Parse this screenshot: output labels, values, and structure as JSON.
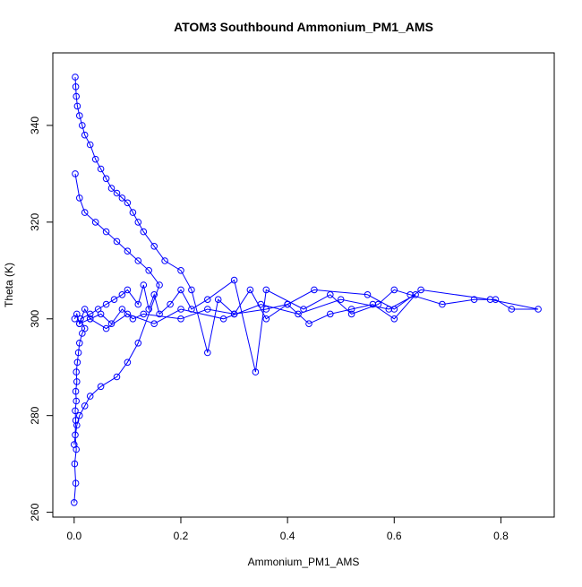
{
  "chart_data": {
    "type": "scatter",
    "style": "points-and-lines",
    "title": "ATOM3 Southbound Ammonium_PM1_AMS",
    "xlabel": "Ammonium_PM1_AMS",
    "ylabel": "Theta (K)",
    "xlim": [
      -0.04,
      0.9
    ],
    "ylim": [
      259,
      355
    ],
    "xticks": [
      0.0,
      0.2,
      0.4,
      0.6,
      0.8
    ],
    "xtick_labels": [
      "0.0",
      "0.2",
      "0.4",
      "0.6",
      "0.8"
    ],
    "yticks": [
      260,
      280,
      300,
      320,
      340
    ],
    "ytick_labels": [
      "260",
      "280",
      "300",
      "320",
      "340"
    ],
    "grid": false,
    "legend": "none",
    "color": "#0000ff",
    "series": [
      {
        "x": [
          0.0,
          0.003,
          0.001,
          0.004,
          0.002,
          0.003,
          0.002,
          0.004,
          0.003,
          0.005,
          0.004,
          0.006,
          0.008,
          0.01,
          0.015,
          0.02,
          0.012,
          0.03,
          0.045,
          0.06,
          0.075,
          0.09,
          0.1,
          0.12,
          0.13,
          0.14,
          0.15,
          0.16,
          0.18,
          0.2,
          0.22,
          0.25,
          0.3,
          0.34,
          0.36,
          0.43,
          0.48,
          0.52,
          0.57,
          0.6,
          0.63,
          0.69,
          0.75,
          0.79,
          0.82,
          0.87,
          0.78,
          0.65,
          0.6,
          0.55,
          0.45,
          0.4,
          0.36,
          0.3,
          0.27,
          0.25,
          0.22,
          0.2,
          0.17,
          0.15,
          0.13,
          0.12,
          0.11,
          0.1,
          0.09,
          0.08,
          0.07,
          0.06,
          0.05,
          0.04,
          0.03,
          0.02,
          0.015,
          0.01,
          0.006,
          0.004,
          0.003,
          0.002
        ],
        "y": [
          262,
          266,
          270,
          273,
          276,
          279,
          281,
          283,
          285,
          287,
          289,
          291,
          293,
          295,
          297,
          298,
          300,
          301,
          302,
          303,
          304,
          305,
          306,
          303,
          307,
          302,
          305,
          301,
          303,
          306,
          302,
          304,
          308,
          289,
          306,
          302,
          305,
          301,
          303,
          306,
          305,
          303,
          304,
          304,
          302,
          302,
          304,
          306,
          302,
          305,
          306,
          303,
          302,
          301,
          304,
          293,
          306,
          310,
          312,
          315,
          318,
          320,
          322,
          324,
          325,
          326,
          327,
          329,
          331,
          333,
          336,
          338,
          340,
          342,
          344,
          346,
          348,
          350
        ]
      },
      {
        "x": [
          0.002,
          0.01,
          0.02,
          0.04,
          0.06,
          0.08,
          0.1,
          0.12,
          0.14,
          0.16,
          0.12,
          0.1,
          0.08,
          0.05,
          0.03,
          0.02,
          0.01,
          0.005,
          0.0
        ],
        "y": [
          330,
          325,
          322,
          320,
          318,
          316,
          314,
          312,
          310,
          307,
          295,
          291,
          288,
          286,
          284,
          282,
          280,
          278,
          274
        ]
      },
      {
        "x": [
          0.001,
          0.005,
          0.01,
          0.02,
          0.03,
          0.05,
          0.07,
          0.09,
          0.11,
          0.13,
          0.2,
          0.25,
          0.3,
          0.33,
          0.36,
          0.4,
          0.44,
          0.48,
          0.52,
          0.56,
          0.6,
          0.64,
          0.59,
          0.5,
          0.42,
          0.35,
          0.28,
          0.2,
          0.15,
          0.1,
          0.06,
          0.03,
          0.01
        ],
        "y": [
          300,
          301,
          299,
          302,
          300,
          301,
          299,
          302,
          300,
          301,
          300,
          302,
          301,
          306,
          300,
          303,
          299,
          301,
          302,
          303,
          300,
          305,
          302,
          304,
          301,
          303,
          300,
          302,
          299,
          301,
          298,
          300,
          299
        ]
      }
    ]
  }
}
